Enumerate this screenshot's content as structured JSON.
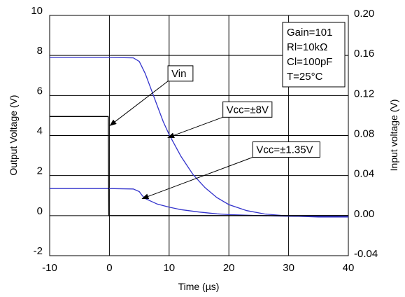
{
  "chart_data": {
    "type": "line",
    "title": "",
    "xlabel": "Time (µs)",
    "ylabel": "Output Voltage (V)",
    "y2label": "Input voltage (V)",
    "xlim": [
      -10,
      40
    ],
    "ylim": [
      -2,
      10
    ],
    "y2lim": [
      -0.04,
      0.2
    ],
    "x_ticks": [
      "-10",
      "0",
      "10",
      "20",
      "30",
      "40"
    ],
    "x_tick_values": [
      -10,
      0,
      10,
      20,
      30,
      40
    ],
    "y_ticks": [
      "-2",
      "0",
      "2",
      "4",
      "6",
      "8",
      "10"
    ],
    "y_tick_values": [
      -2,
      0,
      2,
      4,
      6,
      8,
      10
    ],
    "y2_ticks": [
      "-0.04",
      "0.00",
      "0.04",
      "0.08",
      "0.12",
      "0.16",
      "0.20"
    ],
    "y2_tick_values": [
      -0.04,
      0.0,
      0.04,
      0.08,
      0.12,
      0.16,
      0.2
    ],
    "grid": true,
    "series": [
      {
        "name": "Vcc=±8V",
        "color": "#3333cc",
        "axis": "left",
        "x": [
          -10,
          0,
          4,
          5,
          6,
          7,
          8,
          9,
          10,
          12,
          14,
          16,
          18,
          20,
          23,
          26,
          30,
          35,
          40
        ],
        "y": [
          7.9,
          7.9,
          7.88,
          7.7,
          7.1,
          6.3,
          5.5,
          4.7,
          4.05,
          2.95,
          2.05,
          1.4,
          0.9,
          0.55,
          0.25,
          0.08,
          -0.02,
          -0.07,
          -0.07
        ]
      },
      {
        "name": "Vcc=±1.35V",
        "color": "#3333cc",
        "axis": "left",
        "x": [
          -10,
          0,
          4,
          5,
          5.5,
          6,
          8,
          10,
          12,
          15,
          18,
          20,
          25,
          30,
          40
        ],
        "y": [
          1.35,
          1.35,
          1.33,
          1.2,
          1.0,
          0.85,
          0.58,
          0.42,
          0.3,
          0.18,
          0.09,
          0.05,
          0.0,
          -0.03,
          -0.05
        ]
      },
      {
        "name": "Vin",
        "color": "#000000",
        "axis": "right",
        "x": [
          -10,
          -0.2,
          -0.1,
          0.1,
          40
        ],
        "y": [
          0.099,
          0.099,
          0.0,
          0.0,
          0.0
        ]
      }
    ],
    "annotations": [
      {
        "text": "Vin",
        "box_x": 9.8,
        "box_y": 7.1,
        "arrow_x": 0.1,
        "arrow_y": 4.5
      },
      {
        "text": "Vcc=±8V",
        "box_x": 19,
        "box_y": 5.3,
        "arrow_x": 9.8,
        "arrow_y": 3.9
      },
      {
        "text": "Vcc=±1.35V",
        "box_x": 24,
        "box_y": 3.3,
        "arrow_x": 5.5,
        "arrow_y": 0.85
      }
    ],
    "info_box": [
      "Gain=101",
      "Rl=10kΩ",
      "Cl=100pF",
      "T=25°C"
    ]
  }
}
